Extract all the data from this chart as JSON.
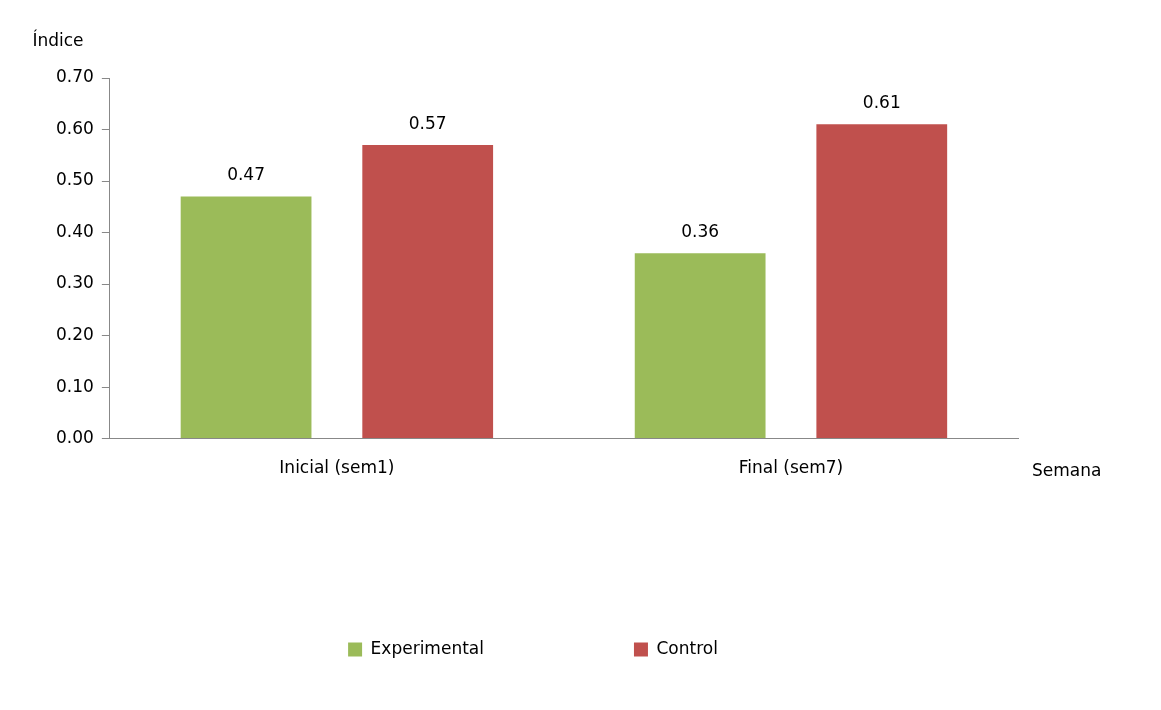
{
  "chart_data": {
    "type": "bar",
    "ylabel": "Índice",
    "xlabel": "Semana",
    "categories": [
      "Inicial (sem1)",
      "Final (sem7)"
    ],
    "series": [
      {
        "name": "Experimental",
        "color": "#9bbb59",
        "values": [
          0.47,
          0.36
        ]
      },
      {
        "name": "Control",
        "color": "#c0504d",
        "values": [
          0.57,
          0.61
        ]
      }
    ],
    "ylim": [
      0,
      0.7
    ],
    "yticks": [
      {
        "value": 0,
        "label": "0.00"
      },
      {
        "value": 0.1,
        "label": "0.10"
      },
      {
        "value": 0.2,
        "label": "0.20"
      },
      {
        "value": 0.3,
        "label": "0.30"
      },
      {
        "value": 0.4,
        "label": "0.40"
      },
      {
        "value": 0.5,
        "label": "0.50"
      },
      {
        "value": 0.6,
        "label": "0.60"
      },
      {
        "value": 0.7,
        "label": "0.70"
      }
    ],
    "grid": false,
    "legend": "bottom",
    "data_labels": true
  }
}
